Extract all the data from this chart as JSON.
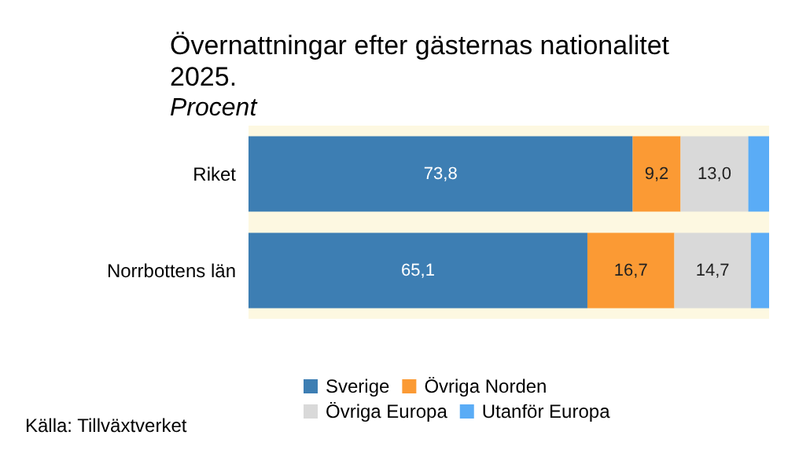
{
  "chart_data": {
    "type": "bar",
    "title": "Övernattningar efter gästernas nationalitet\n2025.",
    "subtitle": "Procent",
    "orientation": "horizontal",
    "stacked": true,
    "categories": [
      "Riket",
      "Norrbottens län"
    ],
    "xlim": [
      0,
      100
    ],
    "tick_labels": "y",
    "legend": "bottom",
    "grid": false,
    "series": [
      {
        "name": "Sverige",
        "color": "#3d7eb3",
        "values": [
          73.8,
          65.1
        ],
        "value_labels": [
          "73,8",
          "65,1"
        ]
      },
      {
        "name": "Övriga Norden",
        "color": "#fb9a34",
        "values": [
          9.2,
          16.7
        ],
        "value_labels": [
          "9,2",
          "16,7"
        ]
      },
      {
        "name": "Övriga Europa",
        "color": "#d9d9d9",
        "values": [
          13.0,
          14.7
        ],
        "value_labels": [
          "13,0",
          "14,7"
        ]
      },
      {
        "name": "Utanför Europa",
        "color": "#5aacf6",
        "values": [
          4.0,
          3.5
        ],
        "value_labels": [
          null,
          null
        ]
      }
    ],
    "annotations": [
      "Källa: Tillväxtverket"
    ]
  }
}
